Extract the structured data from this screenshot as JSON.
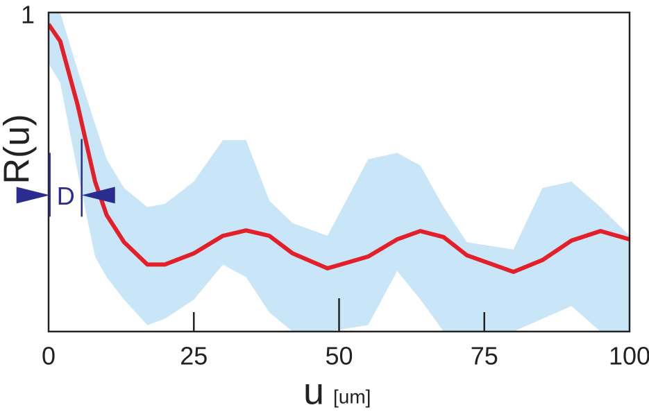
{
  "chart_data": {
    "type": "line",
    "y_label": "R(u)",
    "x_label": "u",
    "x_unit": "[um]",
    "x": [
      0,
      2,
      5,
      8,
      10,
      13,
      17,
      20,
      25,
      30,
      34,
      38,
      42,
      48,
      55,
      60,
      64,
      68,
      72,
      80,
      85,
      90,
      95,
      100
    ],
    "series": [
      {
        "color": "#e3202a",
        "values": [
          0.963,
          0.91,
          0.71,
          0.47,
          0.365,
          0.28,
          0.21,
          0.21,
          0.245,
          0.3,
          0.317,
          0.3,
          0.245,
          0.198,
          0.235,
          0.289,
          0.315,
          0.296,
          0.239,
          0.187,
          0.224,
          0.285,
          0.315,
          0.289
        ]
      }
    ],
    "band": {
      "color": "#c8e6f7",
      "upper": [
        1.0,
        1.0,
        0.82,
        0.65,
        0.54,
        0.45,
        0.39,
        0.4,
        0.47,
        0.6,
        0.6,
        0.41,
        0.34,
        0.3,
        0.54,
        0.56,
        0.52,
        0.39,
        0.28,
        0.257,
        0.45,
        0.47,
        0.39,
        0.3
      ],
      "lower": [
        0.84,
        0.78,
        0.5,
        0.235,
        0.17,
        0.1,
        0.02,
        0.04,
        0.1,
        0.21,
        0.17,
        0.06,
        0,
        0,
        0.02,
        0.19,
        0.1,
        0,
        0,
        0,
        0.04,
        0.08,
        0,
        0
      ]
    },
    "annotation": {
      "text": "D",
      "x": [
        0.2,
        5.7
      ],
      "y": [
        0.36,
        0.56
      ],
      "color": "#2a2d8f"
    },
    "xlim": [
      0,
      100
    ],
    "xticks": [
      0,
      25,
      50,
      75,
      100
    ],
    "ylim": [
      0,
      1
    ],
    "yticks": [
      1
    ]
  }
}
